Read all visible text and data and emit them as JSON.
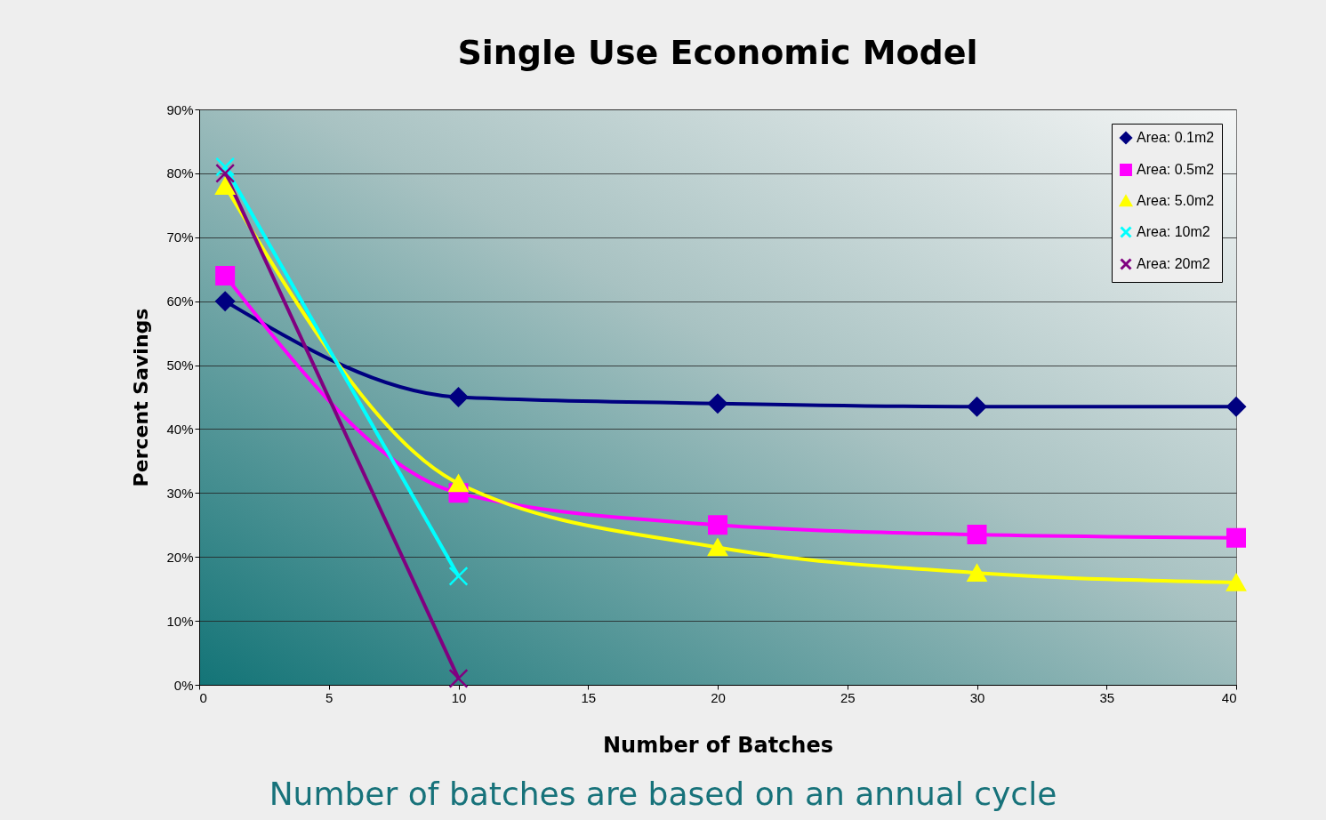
{
  "chart_data": {
    "type": "line",
    "title": "Single Use Economic Model",
    "xlabel": "Number of Batches",
    "ylabel": "Percent Savings",
    "annotations": [
      "Number of batches are based on an annual cycle"
    ],
    "x": [
      1,
      10,
      20,
      30,
      40
    ],
    "series": [
      {
        "name": "Area: 0.1m2",
        "color": "#000080",
        "marker": "diamond",
        "values": [
          60,
          45,
          44,
          43.5,
          43.5
        ]
      },
      {
        "name": "Area: 0.5m2",
        "color": "#ff00ff",
        "marker": "square",
        "values": [
          64,
          30,
          25,
          23.5,
          23
        ]
      },
      {
        "name": "Area: 5.0m2",
        "color": "#ffff00",
        "marker": "triangle",
        "values": [
          78,
          31.5,
          21.5,
          17.5,
          16
        ]
      },
      {
        "name": "Area: 10m2",
        "color": "#00ffff",
        "marker": "cross",
        "values": [
          81,
          17,
          null,
          null,
          null
        ]
      },
      {
        "name": "Area: 20m2",
        "color": "#800080",
        "marker": "cross",
        "values": [
          80,
          1,
          null,
          null,
          null
        ]
      }
    ],
    "xlim": [
      0,
      40
    ],
    "xticks": [
      0,
      5,
      10,
      15,
      20,
      25,
      30,
      35,
      40
    ],
    "ylim": [
      0,
      90
    ],
    "yticks": [
      {
        "value": 0,
        "label": "0%"
      },
      {
        "value": 10,
        "label": "10%"
      },
      {
        "value": 20,
        "label": "20%"
      },
      {
        "value": 30,
        "label": "30%"
      },
      {
        "value": 40,
        "label": "40%"
      },
      {
        "value": 50,
        "label": "50%"
      },
      {
        "value": 60,
        "label": "60%"
      },
      {
        "value": 70,
        "label": "70%"
      },
      {
        "value": 80,
        "label": "80%"
      },
      {
        "value": 90,
        "label": "90%"
      }
    ],
    "grid": "y",
    "legend": "top right",
    "line_style": "solid"
  }
}
